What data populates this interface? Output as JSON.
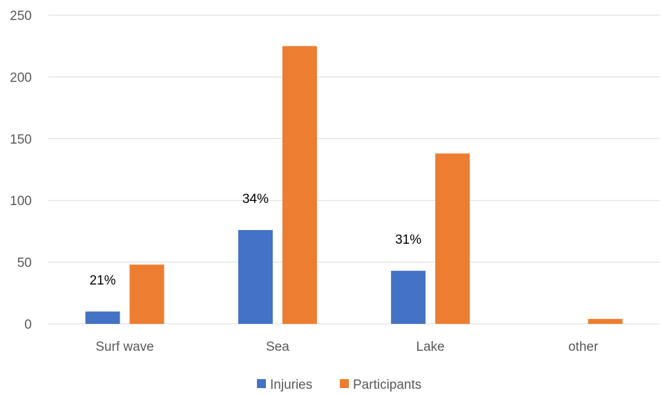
{
  "chart_data": {
    "type": "bar",
    "categories": [
      "Surf wave",
      "Sea",
      "Lake",
      "other"
    ],
    "series": [
      {
        "name": "Injuries",
        "color": "#4472C4",
        "values": [
          10,
          76,
          43,
          0
        ]
      },
      {
        "name": "Participants",
        "color": "#ED7D31",
        "values": [
          48,
          225,
          138,
          4
        ]
      }
    ],
    "annotations": [
      "21%",
      "34%",
      "31%",
      ""
    ],
    "ylim": [
      0,
      250
    ],
    "yticks": [
      0,
      50,
      100,
      150,
      200,
      250
    ],
    "grid": true,
    "legend_position": "bottom"
  }
}
